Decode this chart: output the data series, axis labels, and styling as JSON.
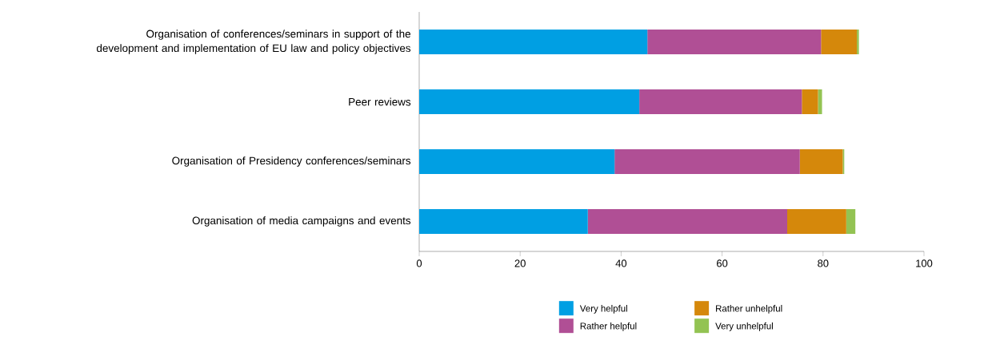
{
  "chart_data": {
    "type": "bar",
    "orientation": "horizontal",
    "stacked": true,
    "categories": [
      "Organisation of conferences/seminars in support of the development and implementation of EU law and policy objectives",
      "Peer reviews",
      "Organisation of Presidency conferences/seminars",
      "Organisation of media campaigns and events"
    ],
    "series": [
      {
        "name": "Very helpful",
        "color": "#009fe3",
        "values": [
          45.2,
          43.6,
          38.7,
          33.4
        ]
      },
      {
        "name": "Rather helpful",
        "color": "#b04f95",
        "values": [
          34.4,
          32.2,
          36.7,
          39.5
        ]
      },
      {
        "name": "Rather unhelpful",
        "color": "#d5880b",
        "values": [
          7.1,
          3.2,
          8.5,
          11.7
        ]
      },
      {
        "name": "Very unhelpful",
        "color": "#93c353",
        "values": [
          0.4,
          0.8,
          0.3,
          1.8
        ]
      }
    ],
    "xlim": [
      0,
      100
    ],
    "xticks": [
      0,
      20,
      40,
      60,
      80,
      100
    ],
    "grid": false,
    "legend": "bottom"
  }
}
